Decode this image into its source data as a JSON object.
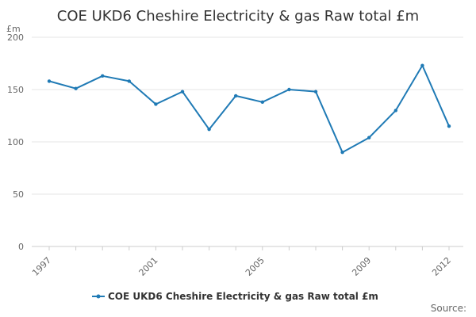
{
  "chart_data": {
    "type": "line",
    "title": "COE UKD6 Cheshire Electricity & gas Raw total £m",
    "unit_label": "£m",
    "x": [
      1997,
      1998,
      1999,
      2000,
      2001,
      2002,
      2003,
      2004,
      2005,
      2006,
      2007,
      2008,
      2009,
      2010,
      2011,
      2012
    ],
    "x_tick_labels": [
      "1997",
      "2001",
      "2005",
      "2009",
      "2012"
    ],
    "x_tick_values": [
      1997,
      2001,
      2005,
      2009,
      2012
    ],
    "y_tick_labels": [
      "0",
      "50",
      "100",
      "150",
      "200"
    ],
    "y_tick_values": [
      0,
      50,
      100,
      150,
      200
    ],
    "ylim": [
      0,
      200
    ],
    "series": [
      {
        "name": "COE UKD6 Cheshire Electricity & gas Raw total £m",
        "color": "#1f7ab5",
        "values": [
          158,
          151,
          163,
          158,
          136,
          148,
          112,
          144,
          138,
          150,
          148,
          90,
          104,
          130,
          173,
          115
        ]
      }
    ],
    "grid": true,
    "legend": "bottom-center",
    "source_label": "Source:"
  }
}
